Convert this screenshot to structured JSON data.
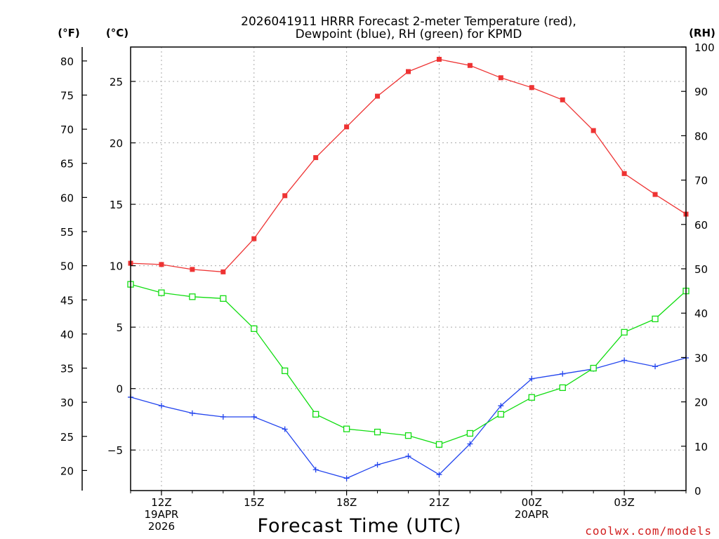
{
  "chart_data": {
    "type": "line",
    "title": [
      "2026041911 HRRR Forecast 2-meter Temperature (red),",
      "Dewpoint (blue), RH (green) for KPMD"
    ],
    "xlabel": "Forecast Time (UTC)",
    "units": {
      "fahrenheit": "(°F)",
      "celsius": "(°C)",
      "rh": "(RH)"
    },
    "x_hours": [
      11,
      12,
      13,
      14,
      15,
      16,
      17,
      18,
      19,
      20,
      21,
      22,
      23,
      24,
      25,
      26,
      27,
      28,
      29
    ],
    "x_range": [
      11,
      29
    ],
    "x_ticks": [
      {
        "hour": 12,
        "lines": [
          "12Z",
          "19APR",
          "2026"
        ]
      },
      {
        "hour": 15,
        "lines": [
          "15Z"
        ]
      },
      {
        "hour": 18,
        "lines": [
          "18Z"
        ]
      },
      {
        "hour": 21,
        "lines": [
          "21Z"
        ]
      },
      {
        "hour": 24,
        "lines": [
          "00Z",
          "20APR"
        ]
      },
      {
        "hour": 27,
        "lines": [
          "03Z"
        ]
      }
    ],
    "celsius_axis": {
      "range": [
        -8.3,
        27.8
      ],
      "ticks": [
        25,
        20,
        15,
        10,
        5,
        0,
        -5
      ],
      "tick_labels": [
        "25",
        "20",
        "15",
        "10",
        "5",
        "0",
        "−5"
      ]
    },
    "fahrenheit_axis": {
      "ticks": [
        80,
        75,
        70,
        65,
        60,
        55,
        50,
        45,
        40,
        35,
        30,
        25,
        20
      ]
    },
    "rh_axis": {
      "range": [
        0,
        100
      ],
      "ticks": [
        100,
        90,
        80,
        70,
        60,
        50,
        40,
        30,
        20,
        10,
        0
      ]
    },
    "series": [
      {
        "name": "2-meter Temperature",
        "axis": "celsius",
        "color": "#ee3333",
        "marker": "filled-square",
        "values": [
          10.2,
          10.1,
          9.7,
          9.5,
          12.2,
          15.7,
          18.8,
          21.3,
          23.8,
          25.8,
          26.8,
          26.3,
          25.3,
          24.5,
          23.5,
          21.0,
          17.5,
          15.8,
          14.2
        ]
      },
      {
        "name": "Dewpoint",
        "axis": "celsius",
        "color": "#2244ee",
        "marker": "plus",
        "values": [
          -0.7,
          -1.4,
          -2.0,
          -2.3,
          -2.3,
          -3.3,
          -6.6,
          -7.3,
          -6.2,
          -5.5,
          -7.0,
          -4.5,
          -1.4,
          0.8,
          1.2,
          1.6,
          2.3,
          1.8,
          2.5
        ]
      },
      {
        "name": "RH",
        "axis": "rh",
        "color": "#11dd11",
        "marker": "open-square",
        "values": [
          46.5,
          44.6,
          43.7,
          43.3,
          36.5,
          27.0,
          17.2,
          13.9,
          13.2,
          12.4,
          10.4,
          12.9,
          17.2,
          21.0,
          23.2,
          27.6,
          35.7,
          38.7,
          45.0
        ]
      }
    ]
  },
  "credit": "coolwx.com/models"
}
